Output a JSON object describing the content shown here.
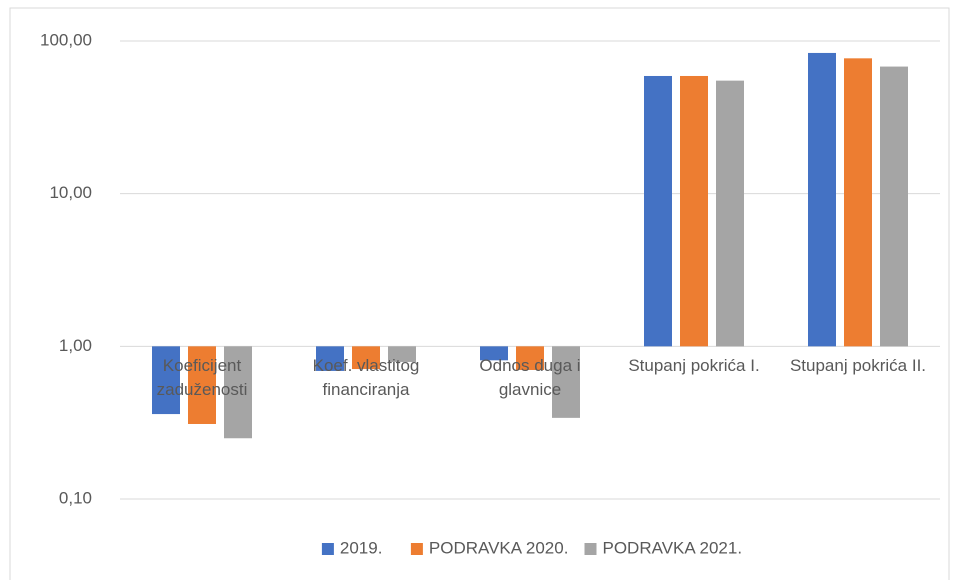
{
  "chart_data": {
    "type": "bar",
    "log_scale": true,
    "grid": true,
    "legend": "bottom",
    "categories": [
      "Koeficijent zaduženosti",
      "Koef. vlastitog financiranja",
      "Odnos duga i glavnice",
      "Stupanj pokrića I.",
      "Stupanj pokrića II."
    ],
    "series": [
      {
        "name": "2019.",
        "color": "#4472c4",
        "values": [
          0.36,
          0.69,
          0.81,
          59,
          83.5
        ]
      },
      {
        "name": "PODRAVKA 2020.",
        "color": "#ed7d31",
        "values": [
          0.31,
          0.71,
          0.7,
          59,
          77
        ]
      },
      {
        "name": "PODRAVKA 2021.",
        "color": "#a5a5a5",
        "values": [
          0.25,
          0.79,
          0.34,
          55,
          68
        ]
      }
    ],
    "ylim": [
      0.1,
      100
    ],
    "yticks": [
      {
        "value": 0.1,
        "label": "0,10"
      },
      {
        "value": 1,
        "label": "1,00"
      },
      {
        "value": 10,
        "label": "10,00"
      },
      {
        "value": 100,
        "label": "100,00"
      }
    ]
  }
}
